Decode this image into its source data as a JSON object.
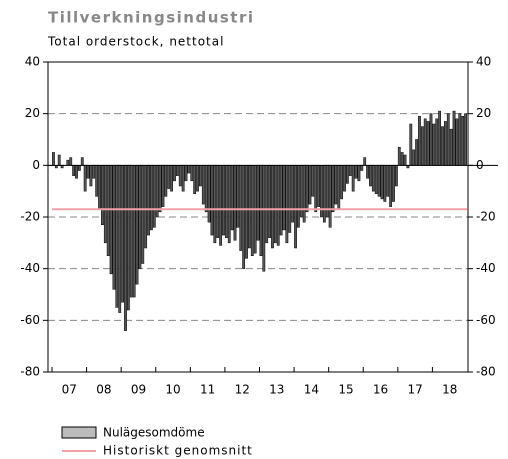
{
  "chart_data": {
    "type": "bar",
    "title": "Tillverkningsindustri",
    "subtitle": "Total orderstock, nettotal",
    "xtick_labels": [
      "07",
      "08",
      "09",
      "10",
      "11",
      "12",
      "13",
      "14",
      "15",
      "16",
      "17",
      "18"
    ],
    "series": [
      {
        "name": "Nulägesomdöme",
        "color": "#555555",
        "values": [
          5,
          -1,
          4,
          -1,
          0,
          2,
          3,
          -4,
          -5,
          -2,
          3,
          -10,
          -5,
          -8,
          -5,
          -12,
          -17,
          -23,
          -30,
          -35,
          -42,
          -48,
          -55,
          -57,
          -53,
          -64,
          -56,
          -51,
          -51,
          -46,
          -40,
          -38,
          -32,
          -27,
          -25,
          -24,
          -20,
          -18,
          -16,
          -12,
          -9,
          -10,
          -6,
          -4,
          -8,
          -10,
          -6,
          -3,
          -6,
          -11,
          -10,
          -8,
          -15,
          -18,
          -22,
          -27,
          -30,
          -28,
          -31,
          -27,
          -28,
          -30,
          -25,
          -29,
          -24,
          -33,
          -40,
          -36,
          -32,
          -35,
          -34,
          -29,
          -35,
          -41,
          -30,
          -28,
          -32,
          -30,
          -31,
          -27,
          -25,
          -30,
          -26,
          -22,
          -32,
          -24,
          -20,
          -22,
          -18,
          -15,
          -12,
          -18,
          -16,
          -20,
          -22,
          -20,
          -24,
          -18,
          -15,
          -17,
          -13,
          -10,
          -7,
          -4,
          -10,
          -5,
          -6,
          -2,
          3,
          -5,
          -8,
          -10,
          -11,
          -12,
          -13,
          -14,
          -12,
          -16,
          -14,
          -8,
          7,
          5,
          4,
          -1,
          16,
          6,
          10,
          19,
          15,
          18,
          17,
          20,
          16,
          18,
          21,
          15,
          17,
          20,
          14,
          21,
          18,
          20,
          19,
          20
        ]
      },
      {
        "name": "Historiskt genomsnitt",
        "color": "#f4a0a8",
        "value": -17
      }
    ],
    "ylim": [
      -80,
      40
    ],
    "yticks": [
      40,
      20,
      0,
      -20,
      -40,
      -60,
      -80
    ],
    "grid": true
  }
}
